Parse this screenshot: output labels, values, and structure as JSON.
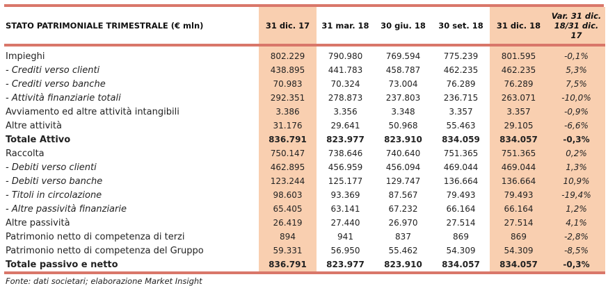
{
  "table": {
    "title": "STATO PATRIMONIALE TRIMESTRALE (€ mln)",
    "columns": [
      "31 dic. 17",
      "31 mar. 18",
      "30 giu. 18",
      "30 set. 18",
      "31 dic. 18",
      "Var. 31 dic. 18/31 dic. 17"
    ],
    "highlight_color": "#f9cfb0",
    "rule_color": "#d9776a",
    "rows": [
      {
        "label": "Impieghi",
        "style": "normal",
        "values": [
          "802.229",
          "790.980",
          "769.594",
          "775.239",
          "801.595",
          "-0,1%"
        ]
      },
      {
        "label": "- Crediti verso clienti",
        "style": "italic",
        "values": [
          "438.895",
          "441.783",
          "458.787",
          "462.235",
          "462.235",
          "5,3%"
        ]
      },
      {
        "label": "- Crediti verso banche",
        "style": "italic",
        "values": [
          "70.983",
          "70.324",
          "73.004",
          "76.289",
          "76.289",
          "7,5%"
        ]
      },
      {
        "label": "- Attività finanziarie totali",
        "style": "italic",
        "values": [
          "292.351",
          "278.873",
          "237.803",
          "236.715",
          "263.071",
          "-10,0%"
        ]
      },
      {
        "label": "Avviamento ed altre attività intangibili",
        "style": "normal",
        "values": [
          "3.386",
          "3.356",
          "3.348",
          "3.357",
          "3.357",
          "-0,9%"
        ]
      },
      {
        "label": "Altre attività",
        "style": "normal",
        "values": [
          "31.176",
          "29.641",
          "50.968",
          "55.463",
          "29.105",
          "-6,6%"
        ]
      },
      {
        "label": "Totale Attivo",
        "style": "bold",
        "values": [
          "836.791",
          "823.977",
          "823.910",
          "834.059",
          "834.057",
          "-0,3%"
        ]
      },
      {
        "label": "Raccolta",
        "style": "normal",
        "values": [
          "750.147",
          "738.646",
          "740.640",
          "751.365",
          "751.365",
          "0,2%"
        ]
      },
      {
        "label": "- Debiti verso clienti",
        "style": "italic",
        "values": [
          "462.895",
          "456.959",
          "456.094",
          "469.044",
          "469.044",
          "1,3%"
        ]
      },
      {
        "label": "- Debiti verso banche",
        "style": "italic",
        "values": [
          "123.244",
          "125.177",
          "129.747",
          "136.664",
          "136.664",
          "10,9%"
        ]
      },
      {
        "label": "- Titoli in circolazione",
        "style": "italic",
        "values": [
          "98.603",
          "93.369",
          "87.567",
          "79.493",
          "79.493",
          "-19,4%"
        ]
      },
      {
        "label": "- Altre passività finanziarie",
        "style": "italic",
        "values": [
          "65.405",
          "63.141",
          "67.232",
          "66.164",
          "66.164",
          "1,2%"
        ]
      },
      {
        "label": "Altre passività",
        "style": "normal",
        "values": [
          "26.419",
          "27.440",
          "26.970",
          "27.514",
          "27.514",
          "4,1%"
        ]
      },
      {
        "label": "Patrimonio netto di competenza di terzi",
        "style": "normal",
        "values": [
          "894",
          "941",
          "837",
          "869",
          "869",
          "-2,8%"
        ]
      },
      {
        "label": "Patrimonio netto di competenza del Gruppo",
        "style": "normal",
        "values": [
          "59.331",
          "56.950",
          "55.462",
          "54.309",
          "54.309",
          "-8,5%"
        ]
      },
      {
        "label": "Totale passivo e netto",
        "style": "bold",
        "values": [
          "836.791",
          "823.977",
          "823.910",
          "834.057",
          "834.057",
          "-0,3%"
        ]
      }
    ]
  },
  "footer": "Fonte: dati societari; elaborazione Market Insight"
}
